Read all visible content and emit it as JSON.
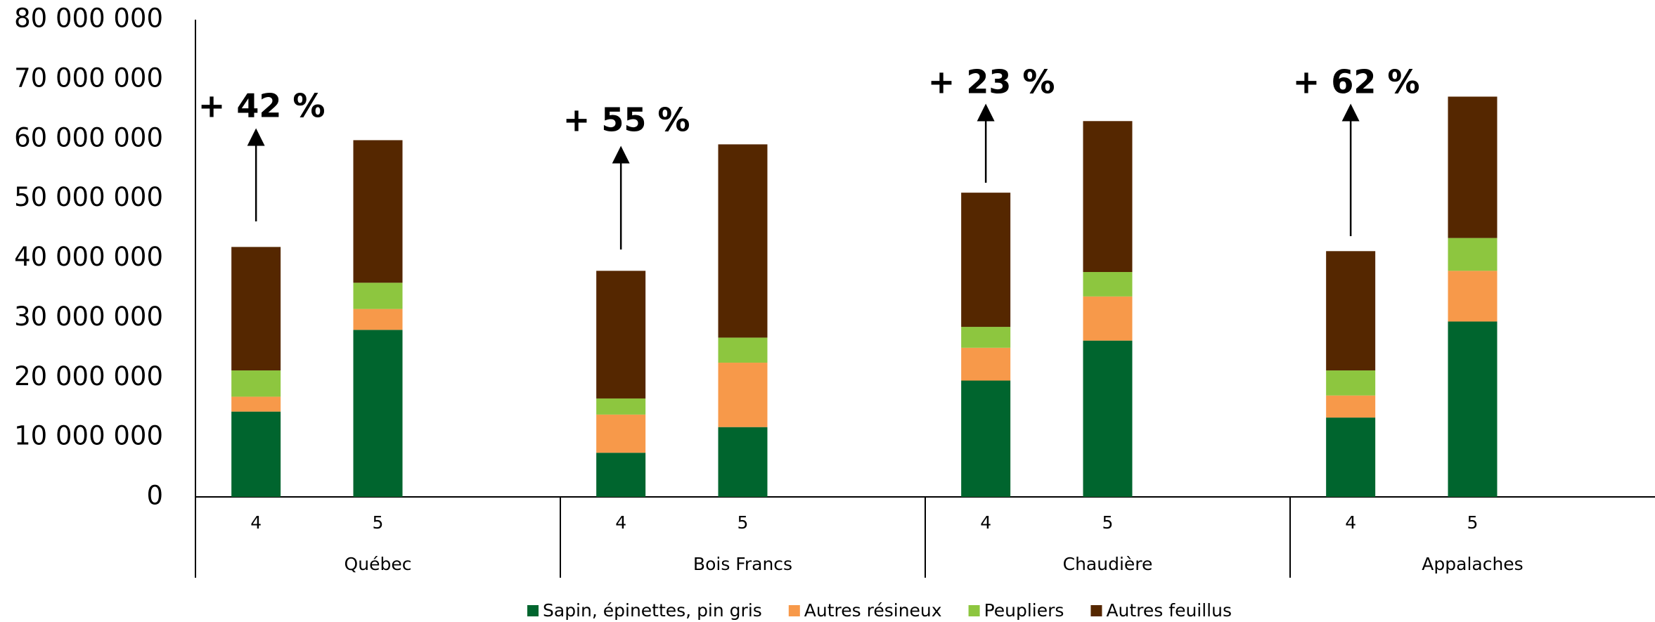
{
  "chart_data": {
    "type": "stacked_bar",
    "categories": [
      "4",
      "5",
      "4",
      "5",
      "4",
      "5",
      "4",
      "5"
    ],
    "groups": [
      "Québec",
      "Bois Francs",
      "Chaudière",
      "Appalaches"
    ],
    "series": [
      {
        "name": "Sapin, épinettes, pin gris",
        "color": "#00652e",
        "values": [
          14300000.0,
          28000000.0,
          7400000.0,
          11700000.0,
          19500000.0,
          26200000.0,
          13300000.0,
          29400000.0
        ]
      },
      {
        "name": "Autres résineux",
        "color": "#f7994a",
        "values": [
          2500000.0,
          3500000.0,
          6400000.0,
          10800000.0,
          5500000.0,
          7400000.0,
          3700000.0,
          8500000.0
        ]
      },
      {
        "name": "Peupliers",
        "color": "#8dc63f",
        "values": [
          4400000.0,
          4400000.0,
          2700000.0,
          4200000.0,
          3500000.0,
          4100000.0,
          4200000.0,
          5500000.0
        ]
      },
      {
        "name": "Autres feuillus",
        "color": "#552700",
        "values": [
          20700000.0,
          23900000.0,
          21400000.0,
          32400000.0,
          22500000.0,
          25300000.0,
          20000000.0,
          23700000.0
        ]
      }
    ],
    "annotations": [
      "+ 42 %",
      "+ 55 %",
      "+ 23 %",
      "+ 62 %"
    ],
    "ylim": [
      0,
      80000000
    ],
    "yticks": [
      0,
      {
        "value": 10000000,
        "label": "10 000 000"
      },
      {
        "value": 20000000,
        "label": "20 000 000"
      },
      {
        "value": 30000000,
        "label": "30 000 000"
      },
      {
        "value": 40000000,
        "label": "40 000 000"
      },
      {
        "value": 50000000,
        "label": "50 000 000"
      },
      {
        "value": 60000000,
        "label": "60 000 000"
      },
      {
        "value": 70000000,
        "label": "70 000 000"
      },
      {
        "value": 80000000,
        "label": "80 000 000"
      }
    ],
    "legend": "bottom"
  }
}
